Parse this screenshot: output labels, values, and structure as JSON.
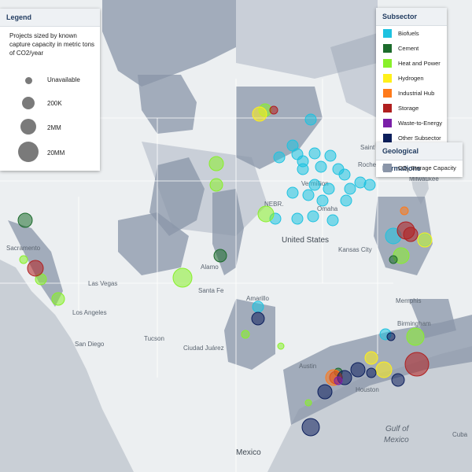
{
  "legend": {
    "title": "Legend",
    "description": "Projects sized by known capture capacity in metric tons of CO2/year",
    "sizes": [
      {
        "label": "Unavailable"
      },
      {
        "label": "200K"
      },
      {
        "label": "2MM"
      },
      {
        "label": "20MM"
      }
    ]
  },
  "subsector": {
    "title": "Subsector",
    "items": [
      {
        "label": "Biofuels",
        "color": "#1ec2e0"
      },
      {
        "label": "Cement",
        "color": "#1c6b2c"
      },
      {
        "label": "Heat and Power",
        "color": "#88f02a"
      },
      {
        "label": "Hydrogen",
        "color": "#fff01a"
      },
      {
        "label": "Industrial Hub",
        "color": "#ff7a1a"
      },
      {
        "label": "Storage",
        "color": "#b01f1f"
      },
      {
        "label": "Waste-to-Energy",
        "color": "#7a1fa8"
      },
      {
        "label": "Other Subsector",
        "color": "#0c1f5c"
      }
    ]
  },
  "geo": {
    "title": "Geological Formations",
    "item_label": "CO",
    "item_sub": "2",
    "item_label_rest": " Storage Capacity"
  },
  "map_labels": {
    "legend_color": "#8a95a8",
    "places": [
      {
        "text": "Saint Paul"
      },
      {
        "text": "Rochester"
      },
      {
        "text": "Milwaukee"
      },
      {
        "text": "Vermillion"
      },
      {
        "text": "Omaha"
      },
      {
        "text": "NEBR."
      },
      {
        "text": "United States"
      },
      {
        "text": "Kansas City"
      },
      {
        "text": "Sacramento"
      },
      {
        "text": "Las Vegas"
      },
      {
        "text": "Los Angeles"
      },
      {
        "text": "San Diego"
      },
      {
        "text": "Santa Fe"
      },
      {
        "text": "Alamo"
      },
      {
        "text": "Amarillo"
      },
      {
        "text": "Tucson"
      },
      {
        "text": "Ciudad Juárez"
      },
      {
        "text": "Austin"
      },
      {
        "text": "Memphis"
      },
      {
        "text": "Birmingham"
      },
      {
        "text": "Houston"
      },
      {
        "text": "Gulf of"
      },
      {
        "text": "Mexico"
      },
      {
        "text": "Mexico"
      },
      {
        "text": "Cuba"
      }
    ]
  }
}
